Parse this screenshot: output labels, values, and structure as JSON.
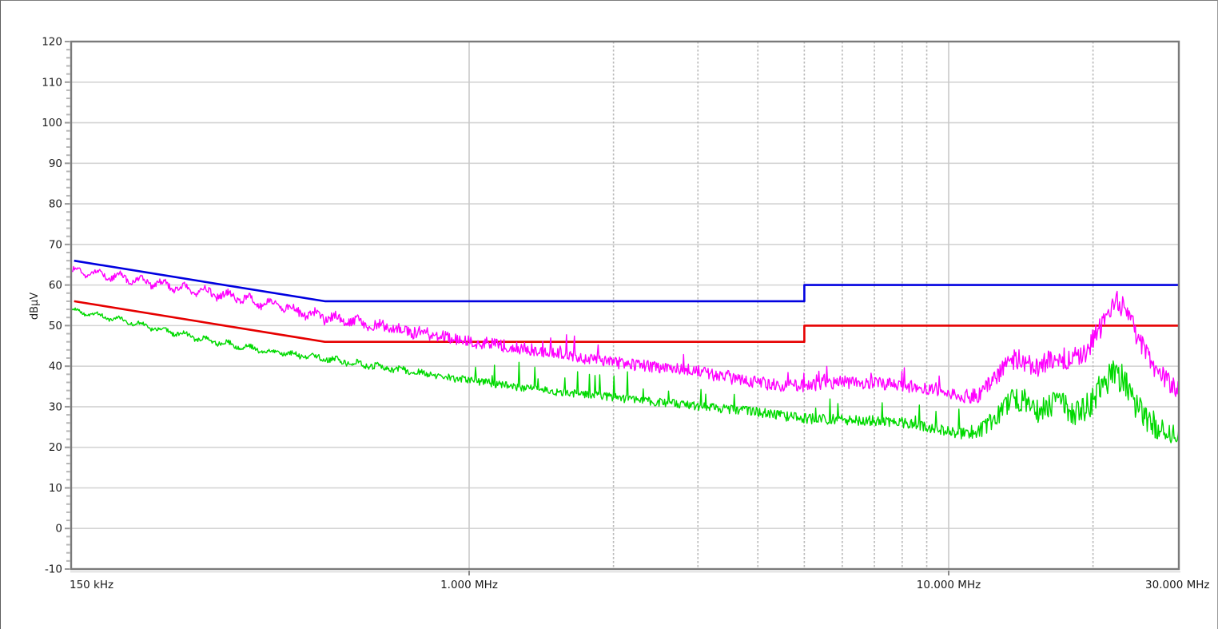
{
  "window": {
    "background": "#ffffff"
  },
  "chart_data": {
    "type": "line",
    "title": "",
    "xlabel": "",
    "ylabel": "dBµV",
    "legend": "none",
    "grid": {
      "h_color": "#d4d4d4",
      "v_solid_color": "#c9c9c9",
      "v_dashed_color": "#b9b9b9",
      "frame_color": "#7a7a7a",
      "frame_shadow_color": "#d9d9d9"
    },
    "x_axis": {
      "scale": "log",
      "unit": "MHz",
      "range_mhz": [
        0.148,
        30.2
      ],
      "tick_marks_mhz": [
        1,
        10
      ],
      "solid_gridlines_mhz": [
        1,
        10
      ],
      "dashed_gridlines_mhz": [
        2,
        3,
        4,
        5,
        6,
        7,
        8,
        9,
        20
      ],
      "labels": [
        {
          "mhz": 0.148,
          "label": "150 kHz",
          "align": "start"
        },
        {
          "mhz": 1.0,
          "label": "1.000 MHz",
          "align": "middle"
        },
        {
          "mhz": 10.0,
          "label": "10.000 MHz",
          "align": "middle"
        },
        {
          "mhz": 30.0,
          "label": "30.000 MHz",
          "align": "middle"
        }
      ]
    },
    "y_axis": {
      "unit": "dBµV",
      "min": -10,
      "max": 120,
      "major_step": 10,
      "minor_step": 2,
      "tick_labels": [
        "120",
        "110",
        "100",
        "90",
        "80",
        "70",
        "60",
        "50",
        "40",
        "30",
        "20",
        "10",
        "0",
        "-10"
      ]
    },
    "series": [
      {
        "name": "average-limit-line",
        "kind": "limit",
        "color": "#e60000",
        "width": 2.6,
        "points_mhz_dbuv": [
          [
            0.15,
            56
          ],
          [
            0.5,
            46
          ],
          [
            5,
            46
          ],
          [
            5,
            50
          ],
          [
            30.2,
            50
          ]
        ]
      },
      {
        "name": "quasi-peak-limit-line",
        "kind": "limit",
        "color": "#0000e0",
        "width": 2.6,
        "points_mhz_dbuv": [
          [
            0.15,
            66
          ],
          [
            0.5,
            56
          ],
          [
            5,
            56
          ],
          [
            5,
            60
          ],
          [
            30.2,
            60
          ]
        ]
      },
      {
        "name": "average-measurement-trace",
        "kind": "measured",
        "color": "#00d900",
        "width": 1.4,
        "seed": 20240605,
        "samples": 1400,
        "wiggle": 0.5,
        "anchors_mhz_dbuv": [
          [
            0.15,
            53.6
          ],
          [
            0.19,
            51.3
          ],
          [
            0.23,
            48.9
          ],
          [
            0.27,
            47.0
          ],
          [
            0.33,
            44.9
          ],
          [
            0.4,
            43.3
          ],
          [
            0.49,
            42.0
          ],
          [
            0.6,
            40.5
          ],
          [
            0.72,
            39.1
          ],
          [
            0.85,
            37.8
          ],
          [
            1.0,
            36.6
          ],
          [
            1.2,
            35.2
          ],
          [
            1.5,
            33.8
          ],
          [
            2.0,
            32.3
          ],
          [
            2.5,
            31.1
          ],
          [
            3.0,
            30.1
          ],
          [
            3.5,
            29.3
          ],
          [
            4.0,
            28.7
          ],
          [
            4.5,
            27.8
          ],
          [
            5.0,
            27.2
          ],
          [
            5.5,
            26.9
          ],
          [
            6.0,
            26.8
          ],
          [
            6.5,
            26.7
          ],
          [
            7.0,
            26.6
          ],
          [
            7.5,
            26.4
          ],
          [
            8.0,
            26.1
          ],
          [
            8.5,
            25.6
          ],
          [
            9.0,
            25.1
          ],
          [
            9.5,
            24.4
          ],
          [
            10.0,
            23.8
          ],
          [
            10.5,
            23.4
          ],
          [
            11.0,
            23.3
          ],
          [
            11.5,
            23.6
          ],
          [
            12.0,
            25.5
          ],
          [
            12.7,
            28.5
          ],
          [
            13.3,
            30.8
          ],
          [
            13.8,
            31.8
          ],
          [
            14.5,
            31.0
          ],
          [
            15.2,
            28.8
          ],
          [
            16.0,
            30.0
          ],
          [
            16.7,
            31.2
          ],
          [
            17.3,
            31.0
          ],
          [
            18.0,
            28.8
          ],
          [
            18.6,
            28.2
          ],
          [
            19.2,
            29.5
          ],
          [
            20.0,
            31.8
          ],
          [
            20.6,
            33.8
          ],
          [
            21.2,
            35.8
          ],
          [
            21.8,
            37.3
          ],
          [
            22.3,
            38.2
          ],
          [
            22.9,
            37.2
          ],
          [
            23.4,
            35.2
          ],
          [
            24.0,
            32.8
          ],
          [
            24.6,
            30.2
          ],
          [
            25.3,
            28.2
          ],
          [
            26.0,
            26.8
          ],
          [
            27.0,
            25.4
          ],
          [
            28.0,
            24.3
          ],
          [
            29.0,
            23.3
          ],
          [
            30.2,
            22.5
          ]
        ],
        "noise_amp_mhz_db": [
          [
            0.15,
            0.4
          ],
          [
            0.5,
            0.7
          ],
          [
            1,
            0.9
          ],
          [
            3,
            1.1
          ],
          [
            5,
            1.3
          ],
          [
            10,
            1.3
          ],
          [
            11.5,
            1.6
          ],
          [
            12.5,
            2.6
          ],
          [
            13,
            3.2
          ],
          [
            19,
            3.2
          ],
          [
            20,
            3.8
          ],
          [
            23,
            3.8
          ],
          [
            24.5,
            3.4
          ],
          [
            30.2,
            3.0
          ]
        ],
        "spikes": {
          "prob": 0.05,
          "range_mhz": [
            1.0,
            11.5
          ],
          "min_db": 2,
          "max_db": 6
        }
      },
      {
        "name": "peak-measurement-trace",
        "kind": "measured",
        "color": "#ff00ff",
        "width": 1.4,
        "seed": 99173,
        "samples": 1400,
        "wiggle": 0.9,
        "anchors_mhz_dbuv": [
          [
            0.15,
            63.5
          ],
          [
            0.17,
            62.6
          ],
          [
            0.19,
            61.8
          ],
          [
            0.215,
            60.7
          ],
          [
            0.245,
            59.5
          ],
          [
            0.275,
            58.5
          ],
          [
            0.31,
            57.5
          ],
          [
            0.36,
            55.8
          ],
          [
            0.41,
            54.5
          ],
          [
            0.46,
            52.9
          ],
          [
            0.52,
            51.8
          ],
          [
            0.6,
            50.5
          ],
          [
            0.7,
            49.3
          ],
          [
            0.8,
            48.2
          ],
          [
            0.9,
            47.1
          ],
          [
            1.0,
            46.2
          ],
          [
            1.2,
            44.9
          ],
          [
            1.5,
            43.3
          ],
          [
            1.8,
            41.8
          ],
          [
            2.0,
            40.9
          ],
          [
            2.5,
            39.8
          ],
          [
            3.0,
            38.7
          ],
          [
            3.5,
            37.0
          ],
          [
            4.0,
            35.9
          ],
          [
            4.5,
            35.3
          ],
          [
            5.0,
            35.1
          ],
          [
            5.5,
            35.6
          ],
          [
            6.0,
            36.1
          ],
          [
            6.5,
            35.9
          ],
          [
            7.0,
            35.6
          ],
          [
            7.5,
            35.6
          ],
          [
            8.0,
            35.3
          ],
          [
            8.5,
            34.9
          ],
          [
            9.0,
            34.4
          ],
          [
            9.5,
            33.9
          ],
          [
            10.0,
            33.4
          ],
          [
            10.5,
            32.9
          ],
          [
            11.0,
            32.4
          ],
          [
            11.5,
            32.7
          ],
          [
            12.0,
            35.0
          ],
          [
            12.6,
            38.0
          ],
          [
            13.2,
            40.5
          ],
          [
            13.7,
            41.8
          ],
          [
            14.4,
            41.2
          ],
          [
            15.1,
            39.8
          ],
          [
            15.9,
            40.8
          ],
          [
            16.6,
            42.0
          ],
          [
            17.2,
            42.3
          ],
          [
            17.9,
            41.4
          ],
          [
            18.5,
            42.0
          ],
          [
            19.0,
            43.0
          ],
          [
            19.5,
            44.5
          ],
          [
            20.0,
            46.5
          ],
          [
            20.5,
            48.5
          ],
          [
            21.0,
            50.8
          ],
          [
            21.5,
            52.8
          ],
          [
            22.0,
            54.8
          ],
          [
            22.5,
            55.8
          ],
          [
            23.0,
            55.2
          ],
          [
            23.5,
            53.2
          ],
          [
            24.0,
            50.8
          ],
          [
            24.5,
            48.3
          ],
          [
            25.0,
            46.3
          ],
          [
            26.0,
            42.3
          ],
          [
            27.0,
            39.6
          ],
          [
            28.0,
            37.3
          ],
          [
            29.0,
            35.3
          ],
          [
            30.2,
            33.8
          ]
        ],
        "noise_amp_mhz_db": [
          [
            0.15,
            0.6
          ],
          [
            0.45,
            1.1
          ],
          [
            0.9,
            1.5
          ],
          [
            10,
            1.6
          ],
          [
            12,
            2.2
          ],
          [
            13,
            2.6
          ],
          [
            19,
            2.8
          ],
          [
            20,
            3.0
          ],
          [
            23.5,
            3.0
          ],
          [
            25,
            2.7
          ],
          [
            30.2,
            2.4
          ]
        ],
        "spikes": {
          "prob": 0.03,
          "range_mhz": [
            1.0,
            10.0
          ],
          "min_db": 1.5,
          "max_db": 4
        }
      }
    ]
  }
}
